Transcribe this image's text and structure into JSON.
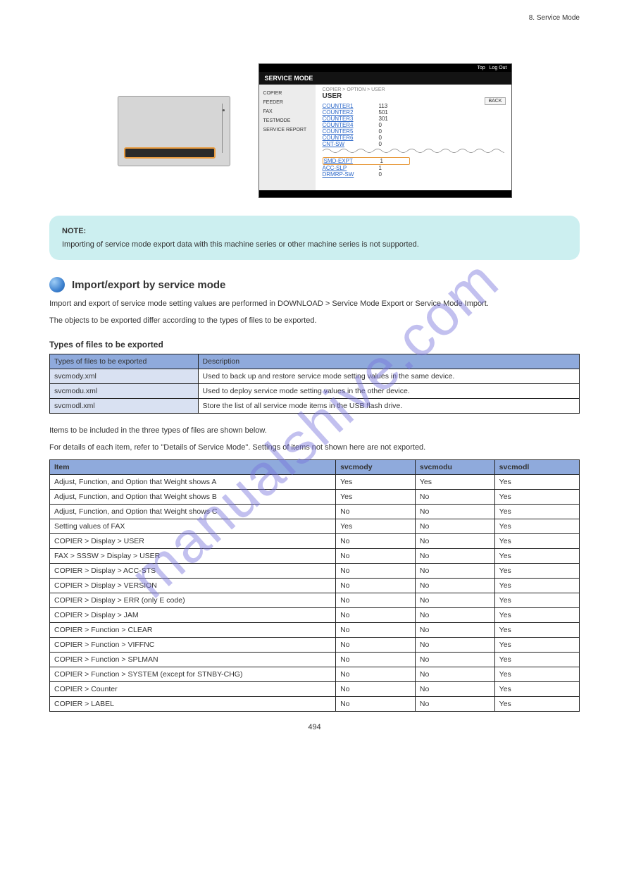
{
  "header": {
    "chapter": "8. Service Mode"
  },
  "watermark": "manualshive.com",
  "controlpanel": {
    "alt": "Control panel"
  },
  "svc": {
    "top_links": [
      "Top",
      "Log Out"
    ],
    "title": "SERVICE MODE",
    "sidebar": [
      "COPIER",
      "FEEDER",
      "FAX",
      "TESTMODE",
      "SERVICE REPORT"
    ],
    "breadcrumb": "COPIER > OPTION > USER",
    "heading": "USER",
    "back": "BACK",
    "rows_top": [
      {
        "k": "COUNTER1",
        "v": "113"
      },
      {
        "k": "COUNTER2",
        "v": "501"
      },
      {
        "k": "COUNTER3",
        "v": "301"
      },
      {
        "k": "COUNTER4",
        "v": "0"
      },
      {
        "k": "COUNTER5",
        "v": "0"
      },
      {
        "k": "COUNTER6",
        "v": "0"
      },
      {
        "k": "CNT-SW",
        "v": "0"
      }
    ],
    "rows_bottom": [
      {
        "k": "SMD-EXPT",
        "v": "1",
        "hl": true
      },
      {
        "k": "ACC-SLP",
        "v": "1"
      },
      {
        "k": "DRMRP-SW",
        "v": "0"
      }
    ]
  },
  "note": {
    "title": "NOTE:",
    "text": "Importing of service mode export data with this machine series or other machine series is not supported."
  },
  "section": {
    "title": "Import/export by service mode",
    "p1": "Import and export of service mode setting values are performed in DOWNLOAD > Service Mode Export or Service Mode Import.",
    "p2": "The objects to be exported differ according to the types of files to be exported."
  },
  "table_types": {
    "caption": "Types of files to be exported",
    "header": [
      "Types of files to be exported",
      "Description"
    ],
    "rows": [
      [
        "svcmody.xml",
        "Used to back up and restore service mode setting values in the same device."
      ],
      [
        "svcmodu.xml",
        "Used to deploy service mode setting values in the other device."
      ],
      [
        "svcmodl.xml",
        "Store the list of all service mode items in the USB flash drive."
      ]
    ]
  },
  "p3": "Items to be included in the three types of files are shown below.",
  "p4": "For details of each item, refer to \"Details of Service Mode\". Settings of items not shown here are not exported.",
  "table_items": {
    "header": [
      "Item",
      "svcmody",
      "svcmodu",
      "svcmodl"
    ],
    "rows": [
      [
        "Adjust, Function, and Option that Weight shows A",
        "Yes",
        "Yes",
        "Yes"
      ],
      [
        "Adjust, Function, and Option that Weight shows B",
        "Yes",
        "No",
        "Yes"
      ],
      [
        "Adjust, Function, and Option that Weight shows C",
        "No",
        "No",
        "Yes"
      ],
      [
        "Setting values of FAX",
        "Yes",
        "No",
        "Yes"
      ],
      [
        "COPIER > Display > USER",
        "No",
        "No",
        "Yes"
      ],
      [
        "FAX > SSSW > Display > USER",
        "No",
        "No",
        "Yes"
      ],
      [
        "COPIER > Display > ACC-STS",
        "No",
        "No",
        "Yes"
      ],
      [
        "COPIER > Display > VERSION",
        "No",
        "No",
        "Yes"
      ],
      [
        "COPIER > Display > ERR (only E code)",
        "No",
        "No",
        "Yes"
      ],
      [
        "COPIER > Display > JAM",
        "No",
        "No",
        "Yes"
      ],
      [
        "COPIER > Function > CLEAR",
        "No",
        "No",
        "Yes"
      ],
      [
        "COPIER > Function > VIFFNC",
        "No",
        "No",
        "Yes"
      ],
      [
        "COPIER > Function > SPLMAN",
        "No",
        "No",
        "Yes"
      ],
      [
        "COPIER > Function > SYSTEM (except for STNBY-CHG)",
        "No",
        "No",
        "Yes"
      ],
      [
        "COPIER > Counter",
        "No",
        "No",
        "Yes"
      ],
      [
        "COPIER > LABEL",
        "No",
        "No",
        "Yes"
      ]
    ]
  },
  "page_number": "494",
  "colors": {
    "note_bg": "#cceff0",
    "table_header": "#8faadc",
    "table_alt": "#d9e1f2",
    "highlight": "#e89b3f",
    "link": "#2a66c8",
    "bullet_grad_start": "#9ecdf6",
    "bullet_grad_end": "#1b5aa8",
    "watermark": "rgba(120,115,220,0.45)"
  }
}
